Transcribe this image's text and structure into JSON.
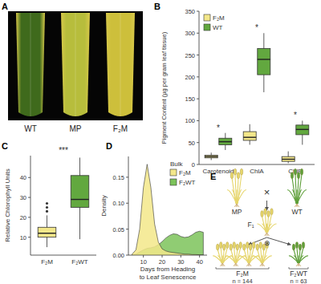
{
  "photo": {
    "panel": "A",
    "leaves": [
      {
        "label": "WT",
        "color": "#3f6a1c"
      },
      {
        "label": "MP",
        "color": "#b7bd3c"
      },
      {
        "label": "F₂M",
        "color": "#cdbf3b"
      }
    ]
  },
  "chart_data": [
    {
      "panel": "B",
      "type": "box",
      "y_label": "Pigment Content (µg per gram leaf tissue)",
      "categories": [
        "Carotenoid",
        "ChlA",
        "ChlB"
      ],
      "series": [
        {
          "name": "F₂M",
          "color": "#f3e78a",
          "boxes": [
            {
              "min": 10,
              "q1": 15,
              "median": 18,
              "q3": 21,
              "max": 27
            },
            {
              "min": 45,
              "q1": 55,
              "median": 62,
              "q3": 75,
              "max": 92
            },
            {
              "min": 3,
              "q1": 7,
              "median": 12,
              "q3": 18,
              "max": 30
            }
          ]
        },
        {
          "name": "WT",
          "color": "#62a83f",
          "boxes": [
            {
              "min": 33,
              "q1": 45,
              "median": 52,
              "q3": 60,
              "max": 72
            },
            {
              "min": 165,
              "q1": 205,
              "median": 240,
              "q3": 265,
              "max": 300
            },
            {
              "min": 45,
              "q1": 68,
              "median": 80,
              "q3": 90,
              "max": 100
            }
          ]
        }
      ],
      "annotations": [
        "*",
        "*",
        "*"
      ],
      "ylim": [
        0,
        350
      ],
      "yticks": [
        0,
        50,
        100,
        150,
        200,
        250,
        300,
        350
      ],
      "legend": "top-left"
    },
    {
      "panel": "C",
      "type": "box",
      "y_label": "Relative Chlorophyll Units",
      "categories": [
        "F₂M",
        "F₂WT"
      ],
      "colors": [
        "#f3e78a",
        "#62a83f"
      ],
      "boxes": [
        {
          "min": 5,
          "q1": 10,
          "median": 12,
          "q3": 15,
          "max": 21,
          "outliers": [
            23,
            25,
            27
          ]
        },
        {
          "min": 9,
          "q1": 25,
          "median": 29,
          "q3": 41,
          "max": 50
        }
      ],
      "annotation": "***",
      "ylim": [
        1,
        51
      ],
      "yticks": [
        10,
        20,
        30,
        40
      ]
    },
    {
      "panel": "D",
      "type": "area",
      "x_label": "Days from Heading\nto Leaf Senescence",
      "y_label": "Density",
      "x": [
        4,
        6,
        8,
        10,
        12,
        14,
        16,
        18,
        20,
        22,
        24,
        26,
        28,
        30,
        32,
        34,
        36,
        38,
        40,
        42
      ],
      "series": [
        {
          "name": "F₂M",
          "color": "#f3e78a",
          "values": [
            0.002,
            0.01,
            0.05,
            0.13,
            0.175,
            0.13,
            0.06,
            0.025,
            0.012,
            0.008,
            0.006,
            0.005,
            0.004,
            0.003,
            0.002,
            0.002,
            0.001,
            0.001,
            0.0005,
            0
          ]
        },
        {
          "name": "F₂WT",
          "color": "#7cc35a",
          "values": [
            0,
            0.002,
            0.006,
            0.01,
            0.013,
            0.014,
            0.016,
            0.02,
            0.026,
            0.033,
            0.038,
            0.041,
            0.04,
            0.036,
            0.034,
            0.035,
            0.039,
            0.044,
            0.046,
            0.044
          ]
        }
      ],
      "xlim": [
        2,
        44
      ],
      "xticks": [
        10,
        20,
        30,
        40
      ],
      "ylim": [
        0,
        0.19
      ],
      "yticks": [
        {
          "value": 0,
          "label": "0.00"
        },
        {
          "value": 0.05,
          "label": "0.05"
        },
        {
          "value": 0.1,
          "label": "0.10"
        },
        {
          "value": 0.15,
          "label": "0.15"
        }
      ],
      "legend": "top-right",
      "legend_title": "Bulk"
    }
  ],
  "diagram": {
    "panel": "E",
    "parents": [
      {
        "label": "MP",
        "color": "#e6d56a"
      },
      {
        "label": "WT",
        "color": "#5f9f3a"
      }
    ],
    "cross": "×",
    "f1": {
      "label": "F₁",
      "color": "#e6d56a"
    },
    "self": "⊗",
    "offspring": [
      {
        "label": "F₂M",
        "n": "n = 144",
        "plants": 4,
        "color": "#e6d56a"
      },
      {
        "label": "F₂WT",
        "n": "n = 63",
        "plants": 1,
        "color": "#5f9f3a"
      }
    ]
  }
}
